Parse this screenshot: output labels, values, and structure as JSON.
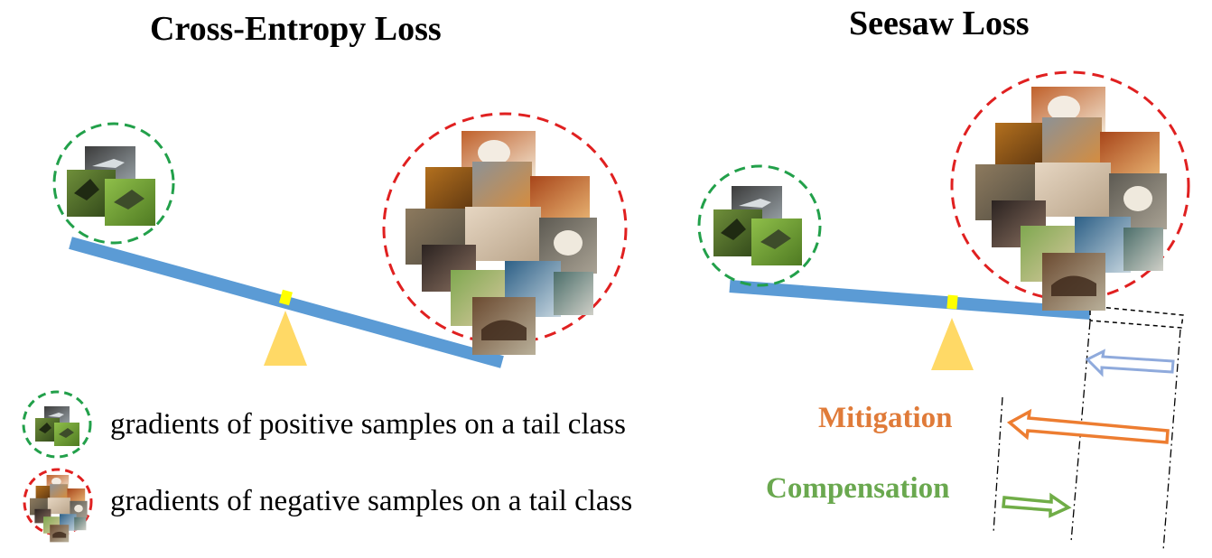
{
  "titles": {
    "cross_entropy": "Cross-Entropy Loss",
    "seesaw": "Seesaw Loss"
  },
  "legend": {
    "positive": "gradients of positive samples on a tail class",
    "negative": "gradients of negative samples on a tail class"
  },
  "arrows": {
    "mitigation": "Mitigation",
    "compensation": "Compensation"
  },
  "colors": {
    "beam": "#5b9bd5",
    "pivot": "#ffd966",
    "joint": "#ffff00",
    "positive_circle": "#22a04a",
    "negative_circle": "#e02020",
    "mitigation": "#ed7d31",
    "compensation": "#70ad47",
    "small_arrow": "#8faadc"
  },
  "icons": {
    "positive_cluster": "hummingbird-photo-cluster",
    "negative_cluster": "dog-cat-horse-photo-cluster"
  }
}
